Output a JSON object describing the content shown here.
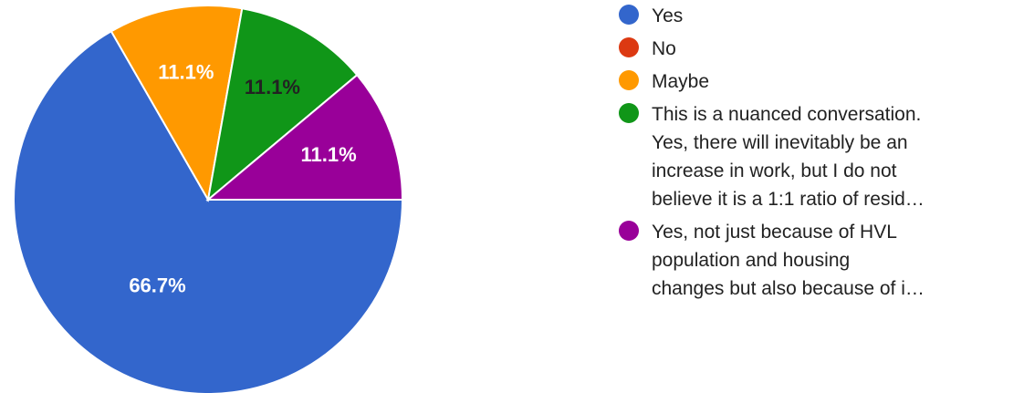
{
  "chart_data": {
    "type": "pie",
    "title": "",
    "categories": [
      "Yes",
      "No",
      "Maybe",
      "This is a nuanced conversation.\nYes, there will inevitably be an\nincrease in work, but I do not\nbelieve it is a 1:1 ratio of resid…",
      "Yes, not just because of HVL\npopulation and housing\nchanges but also because of i…"
    ],
    "values": [
      66.7,
      0,
      11.1,
      11.1,
      11.1
    ],
    "data_labels": [
      "66.7%",
      "",
      "11.1%",
      "11.1%",
      "11.1%"
    ],
    "label_colors": [
      "#ffffff",
      "#ffffff",
      "#ffffff",
      "#222222",
      "#ffffff"
    ],
    "colors": [
      "#3366cc",
      "#dc3912",
      "#ff9900",
      "#109618",
      "#990099"
    ],
    "legend_position": "right"
  }
}
